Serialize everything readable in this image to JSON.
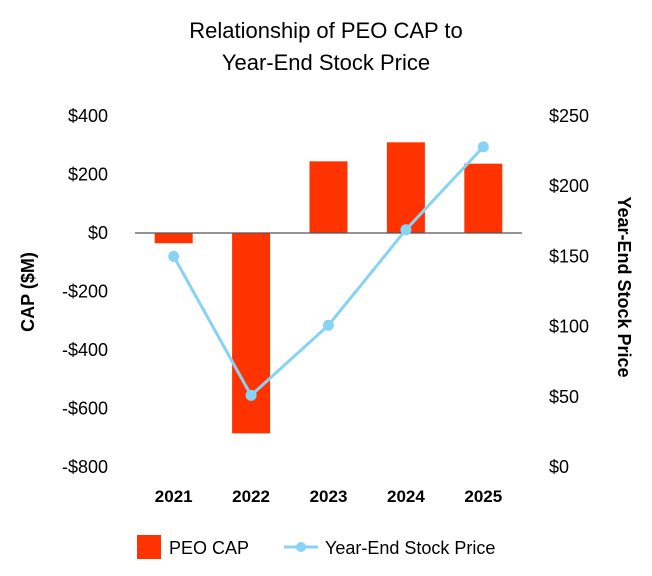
{
  "chart_data": {
    "type": "bar",
    "title_lines": [
      "Relationship of PEO CAP to",
      "Year-End Stock Price"
    ],
    "categories": [
      "2021",
      "2022",
      "2023",
      "2024",
      "2025"
    ],
    "series": [
      {
        "name": "PEO CAP",
        "type": "bar",
        "axis": "left",
        "color": "#ff3300",
        "values": [
          -35,
          -685,
          245,
          310,
          237
        ]
      },
      {
        "name": "Year-End Stock Price",
        "type": "line",
        "axis": "right",
        "color": "#87d3f5",
        "values": [
          150,
          51,
          101,
          169,
          228
        ]
      }
    ],
    "y_left": {
      "label": "CAP ($M)",
      "range": [
        -800,
        400
      ],
      "ticks": [
        400,
        200,
        0,
        -200,
        -400,
        -600,
        -800
      ],
      "tick_labels": [
        "$400",
        "$200",
        "$0",
        "-$200",
        "-$400",
        "-$600",
        "-$800"
      ]
    },
    "y_right": {
      "label": "Year-End Stock Price",
      "range": [
        0,
        250
      ],
      "ticks": [
        250,
        200,
        150,
        100,
        50,
        0
      ],
      "tick_labels": [
        "$250",
        "$200",
        "$150",
        "$100",
        "$50",
        "$0"
      ]
    },
    "grid": false,
    "legend_position": "bottom"
  }
}
